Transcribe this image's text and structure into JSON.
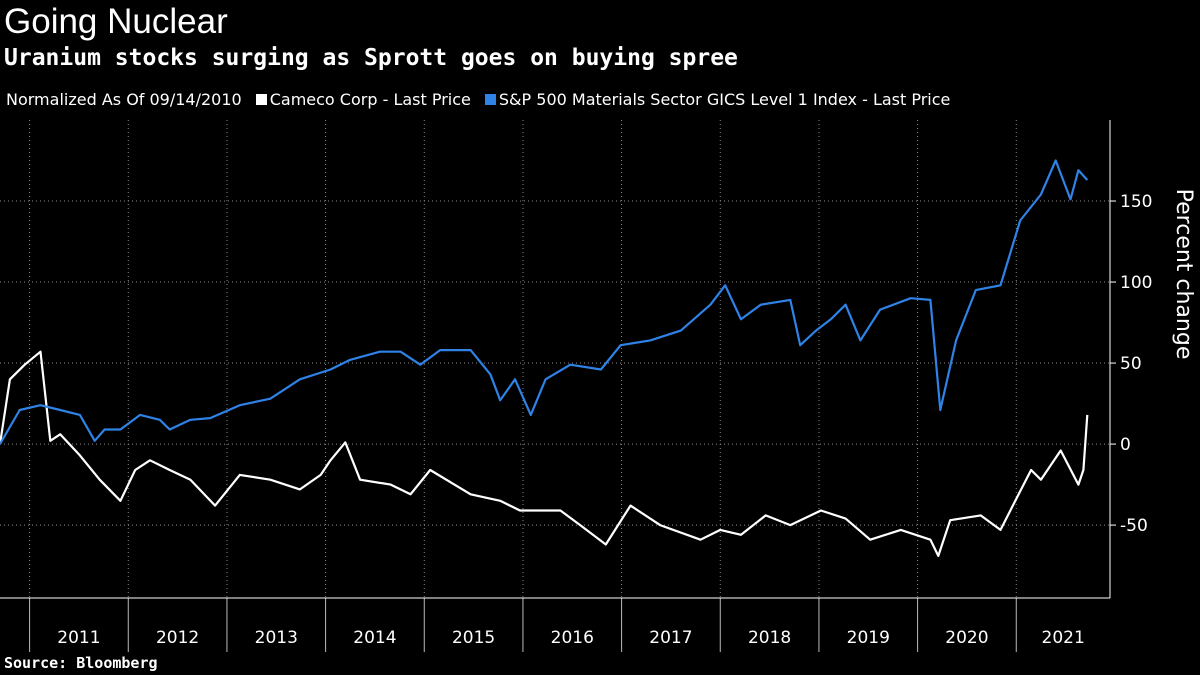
{
  "chart_data": {
    "type": "line",
    "title": "Going Nuclear",
    "subtitle": "Uranium stocks surging as Sprott goes on buying spree",
    "note": "Normalized As Of 09/14/2010",
    "source": "Source: Bloomberg",
    "y_label": "Percent change",
    "xlim": [
      2010.7,
      2021.95
    ],
    "xticks": [
      2011,
      2012,
      2013,
      2014,
      2015,
      2016,
      2017,
      2018,
      2019,
      2020,
      2021
    ],
    "ylim": [
      -95,
      200
    ],
    "yticks": [
      -50,
      0,
      50,
      100,
      150
    ],
    "grid": true,
    "series": [
      {
        "name": "Cameco Corp - Last Price",
        "color": "#ffffff",
        "x": [
          2010.7,
          2010.8,
          2010.95,
          2011.11,
          2011.21,
          2011.31,
          2011.51,
          2011.71,
          2011.92,
          2012.07,
          2012.22,
          2012.42,
          2012.63,
          2012.88,
          2013.13,
          2013.44,
          2013.74,
          2013.95,
          2014.05,
          2014.2,
          2014.35,
          2014.66,
          2014.86,
          2015.06,
          2015.47,
          2015.77,
          2015.97,
          2016.38,
          2016.58,
          2016.84,
          2017.09,
          2017.39,
          2017.8,
          2018.0,
          2018.21,
          2018.46,
          2018.71,
          2019.02,
          2019.27,
          2019.52,
          2019.83,
          2020.13,
          2020.21,
          2020.33,
          2020.64,
          2020.84,
          2020.99,
          2021.15,
          2021.25,
          2021.45,
          2021.63,
          2021.68,
          2021.72
        ],
        "values": [
          0,
          40,
          49,
          57,
          2,
          6,
          -7,
          -22,
          -35,
          -16,
          -10,
          -16,
          -22,
          -38,
          -19,
          -22,
          -28,
          -19,
          -10,
          1,
          -22,
          -25,
          -31,
          -16,
          -31,
          -35,
          -41,
          -41,
          -50,
          -62,
          -38,
          -50,
          -59,
          -53,
          -56,
          -44,
          -50,
          -41,
          -46,
          -59,
          -53,
          -59,
          -69,
          -47,
          -44,
          -53,
          -35,
          -16,
          -22,
          -4,
          -25,
          -16,
          18
        ]
      },
      {
        "name": "S&P 500 Materials Sector GICS Level 1 Index - Last Price",
        "color": "#2f82e6",
        "x": [
          2010.7,
          2010.9,
          2011.11,
          2011.31,
          2011.51,
          2011.66,
          2011.76,
          2011.92,
          2012.12,
          2012.32,
          2012.42,
          2012.63,
          2012.83,
          2013.13,
          2013.44,
          2013.74,
          2014.05,
          2014.25,
          2014.55,
          2014.76,
          2014.96,
          2015.16,
          2015.47,
          2015.67,
          2015.77,
          2015.92,
          2016.08,
          2016.23,
          2016.48,
          2016.79,
          2016.99,
          2017.29,
          2017.6,
          2017.9,
          2018.05,
          2018.21,
          2018.41,
          2018.71,
          2018.81,
          2018.97,
          2019.12,
          2019.27,
          2019.42,
          2019.62,
          2019.93,
          2020.13,
          2020.23,
          2020.39,
          2020.59,
          2020.84,
          2021.04,
          2021.25,
          2021.4,
          2021.55,
          2021.63,
          2021.72
        ],
        "values": [
          0,
          21,
          24,
          21,
          18,
          2,
          9,
          9,
          18,
          15,
          9,
          15,
          16,
          24,
          28,
          40,
          46,
          52,
          57,
          57,
          49,
          58,
          58,
          43,
          27,
          40,
          18,
          40,
          49,
          46,
          61,
          64,
          70,
          86,
          98,
          77,
          86,
          89,
          61,
          70,
          77,
          86,
          64,
          83,
          90,
          89,
          21,
          64,
          95,
          98,
          138,
          154,
          175,
          151,
          169,
          163
        ]
      }
    ]
  }
}
